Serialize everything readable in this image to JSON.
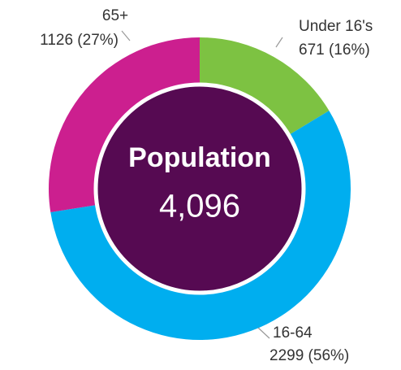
{
  "chart_data": {
    "type": "pie",
    "title": "Population",
    "center_label": "4,096",
    "categories": [
      "Under 16's",
      "16-64",
      "65+"
    ],
    "values": [
      671,
      2299,
      1126
    ],
    "value_labels": [
      "671 (16%)",
      "2299 (56%)",
      "1126 (27%)"
    ],
    "colors": [
      "#7dc242",
      "#00aeef",
      "#cc1f8f"
    ],
    "center_color": "#560a52"
  }
}
